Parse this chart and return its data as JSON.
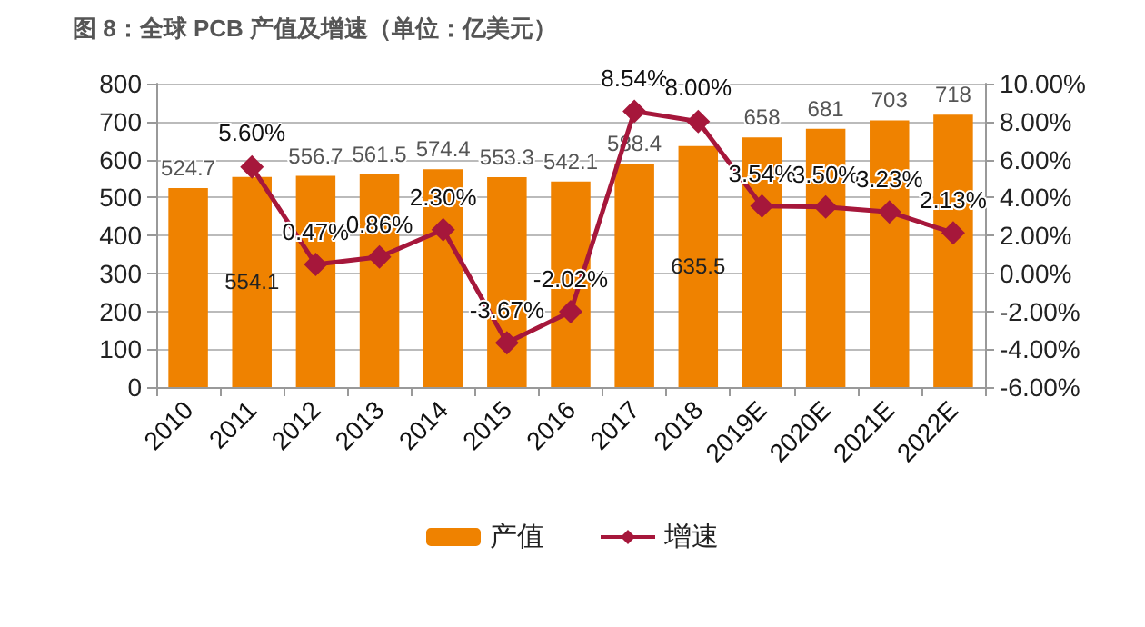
{
  "chart_data": {
    "type": "bar",
    "title": "图 8：全球 PCB 产值及增速（单位：亿美元）",
    "categories": [
      "2010",
      "2011",
      "2012",
      "2013",
      "2014",
      "2015",
      "2016",
      "2017",
      "2018",
      "2019E",
      "2020E",
      "2021E",
      "2022E"
    ],
    "series": [
      {
        "name": "产值",
        "color": "#ef8200",
        "values": [
          524.7,
          554.1,
          556.7,
          561.5,
          574.4,
          553.3,
          542.1,
          588.4,
          635.5,
          658,
          681,
          703,
          718
        ],
        "value_labels": [
          "524.7",
          "554.1",
          "556.7",
          "561.5",
          "574.4",
          "553.3",
          "542.1",
          "588.4",
          "635.5",
          "658",
          "681",
          "703",
          "718"
        ]
      },
      {
        "name": "增速",
        "type": "line",
        "axis": "y2",
        "color": "#a6173b",
        "marker": "diamond",
        "values": [
          null,
          5.6,
          0.47,
          0.86,
          2.3,
          -3.67,
          -2.02,
          8.54,
          8.0,
          3.54,
          3.5,
          3.23,
          2.13
        ],
        "value_labels": [
          null,
          "5.60%",
          "0.47%",
          "0.86%",
          "2.30%",
          "-3.67%",
          "-2.02%",
          "8.54%",
          "8.00%",
          "3.54%",
          "3.50%",
          "3.23%",
          "2.13%"
        ]
      }
    ],
    "ylim": [
      0,
      800
    ],
    "yticks": [
      0,
      100,
      200,
      300,
      400,
      500,
      600,
      700,
      800
    ],
    "y2lim": [
      -6,
      10
    ],
    "y2ticks": [
      {
        "value": -6,
        "label": "-6.00%"
      },
      {
        "value": -4,
        "label": "-4.00%"
      },
      {
        "value": -2,
        "label": "-2.00%"
      },
      {
        "value": 0,
        "label": "0.00%"
      },
      {
        "value": 2,
        "label": "2.00%"
      },
      {
        "value": 4,
        "label": "4.00%"
      },
      {
        "value": 6,
        "label": "6.00%"
      },
      {
        "value": 8,
        "label": "8.00%"
      },
      {
        "value": 10,
        "label": "10.00%"
      }
    ],
    "grid": "y",
    "legend": "bottom"
  }
}
